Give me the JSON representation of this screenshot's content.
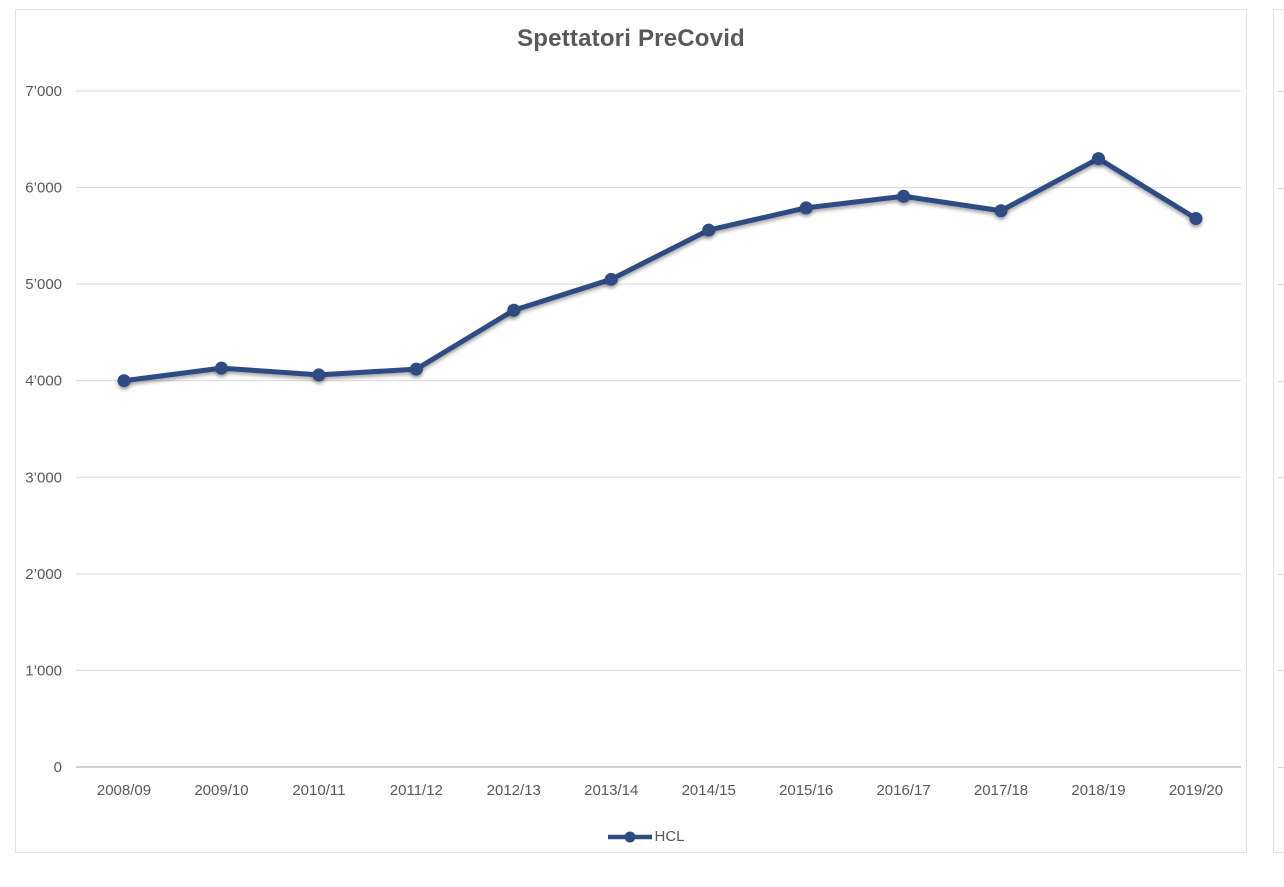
{
  "page": {
    "background": "#ffffff"
  },
  "chart_card": {
    "background": "#ffffff",
    "border_color": "#e2e2e2"
  },
  "chart_data": {
    "type": "line",
    "title": "Spettatori PreCovid",
    "xlabel": "",
    "ylabel": "",
    "categories": [
      "2008/09",
      "2009/10",
      "2010/11",
      "2011/12",
      "2012/13",
      "2013/14",
      "2014/15",
      "2015/16",
      "2016/17",
      "2017/18",
      "2018/19",
      "2019/20"
    ],
    "series": [
      {
        "name": "HCL",
        "color": "#2d4b82",
        "values": [
          4000,
          4130,
          4060,
          4120,
          4730,
          5050,
          5560,
          5790,
          5910,
          5760,
          6300,
          5680
        ]
      }
    ],
    "ylim": [
      0,
      7000
    ],
    "ytick_step": 1000,
    "yticks": [
      {
        "value": 0,
        "label": "0"
      },
      {
        "value": 1000,
        "label": "1’000"
      },
      {
        "value": 2000,
        "label": "2’000"
      },
      {
        "value": 3000,
        "label": "3’000"
      },
      {
        "value": 4000,
        "label": "4’000"
      },
      {
        "value": 5000,
        "label": "5’000"
      },
      {
        "value": 6000,
        "label": "6’000"
      },
      {
        "value": 7000,
        "label": "7’000"
      }
    ],
    "grid": true,
    "legend_position": "bottom",
    "title_color": "#595959",
    "axis_label_color": "#595959",
    "gridline_color": "#d9d9d9",
    "axis_line_color": "#bfbfbf"
  }
}
